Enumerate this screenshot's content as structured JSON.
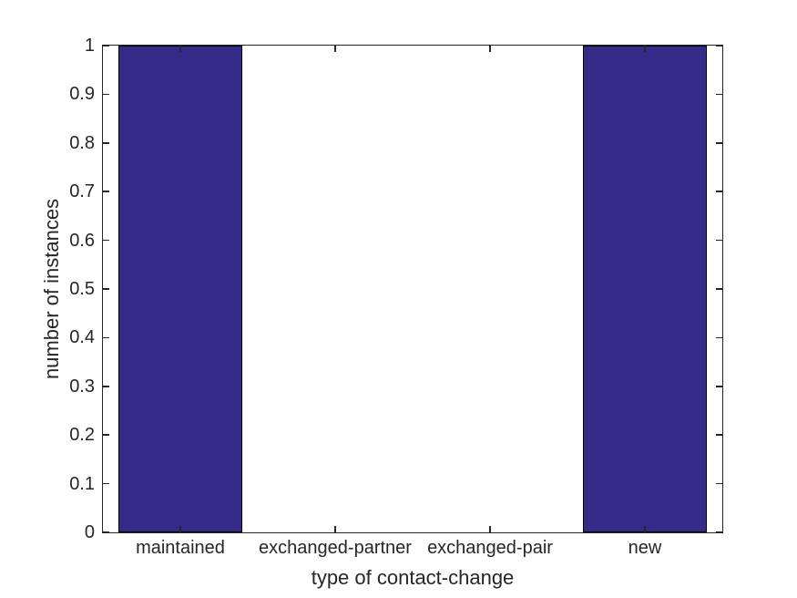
{
  "chart_data": {
    "type": "bar",
    "title": "",
    "categories": [
      "maintained",
      "exchanged-partner",
      "exchanged-pair",
      "new"
    ],
    "values": [
      1,
      0,
      0,
      1
    ],
    "xlabel": "type of contact-change",
    "ylabel": "number of instances",
    "ylim": [
      0,
      1
    ],
    "yticks": [
      0,
      0.1,
      0.2,
      0.3,
      0.4,
      0.5,
      0.6,
      0.7,
      0.8,
      0.9,
      1
    ],
    "ytick_labels": [
      "0",
      "0.1",
      "0.2",
      "0.3",
      "0.4",
      "0.5",
      "0.6",
      "0.7",
      "0.8",
      "0.9",
      "1"
    ],
    "bar_width_fraction": 0.8,
    "grid": "off",
    "legend": "none",
    "box": "on",
    "tick_direction": "in",
    "colors": {
      "bar_fill": "#352A87",
      "bar_edge": "#000000",
      "axis": "#262626",
      "text": "#262626",
      "background": "#ffffff"
    }
  }
}
